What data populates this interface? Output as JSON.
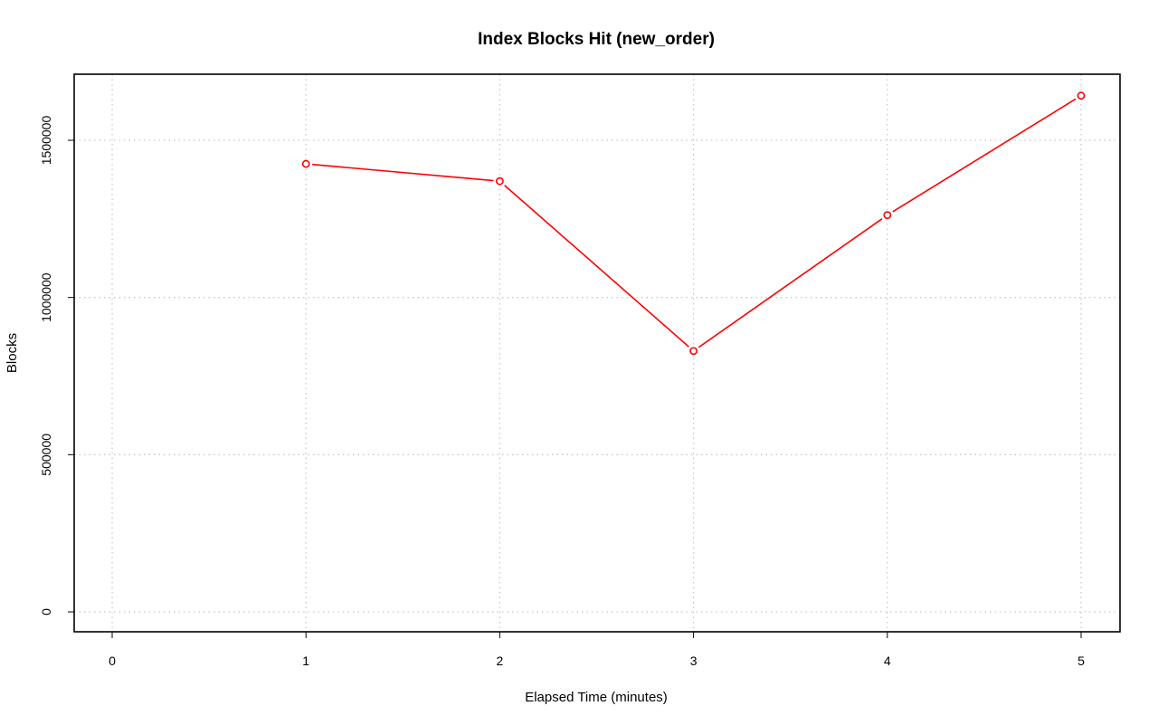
{
  "chart_data": {
    "type": "line",
    "title": "Index Blocks Hit (new_order)",
    "xlabel": "Elapsed Time (minutes)",
    "ylabel": "Blocks",
    "xlim": [
      0,
      5
    ],
    "ylim": [
      0,
      1700000
    ],
    "x_ticks": [
      0,
      1,
      2,
      3,
      4,
      5
    ],
    "y_ticks": [
      0,
      500000,
      1000000,
      1500000
    ],
    "x_tick_labels": [
      "0",
      "1",
      "2",
      "3",
      "4",
      "5"
    ],
    "y_tick_labels": [
      "0",
      "500000",
      "1000000",
      "1500000"
    ],
    "grid": true,
    "series": [
      {
        "color": "#ff0000",
        "x": [
          1,
          2,
          3,
          4,
          5
        ],
        "y": [
          1425000,
          1370000,
          830000,
          1262000,
          1642000
        ]
      }
    ]
  }
}
